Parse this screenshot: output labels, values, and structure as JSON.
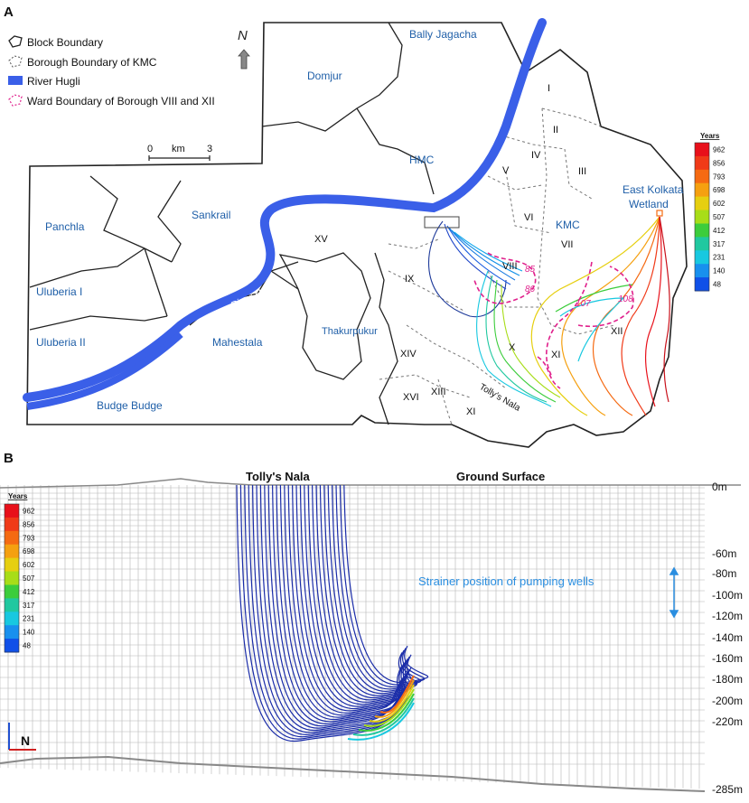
{
  "panelA": {
    "label": "A",
    "legend": {
      "block_boundary": "Block Boundary",
      "borough_boundary": "Borough Boundary of KMC",
      "river": "River Hugli",
      "ward_boundary": "Ward Boundary of Borough VIII and XII"
    },
    "north_label": "N",
    "scale": {
      "zero": "0",
      "unit": "km",
      "max": "3"
    },
    "places": {
      "bally": "Bally Jagacha",
      "domjur": "Domjur",
      "hmc": "HMC",
      "panchla": "Panchla",
      "sankrail": "Sankrail",
      "uluberia1": "Uluberia I",
      "uluberia2": "Uluberia II",
      "mahestala": "Mahestala",
      "budge": "Budge Budge",
      "thakurpukur": "Thakurpukur",
      "kmc": "KMC",
      "ekw_1": "East Kolkata",
      "ekw_2": "Wetland",
      "river_label": "River Hugli",
      "tollys_nala": "Tolly's Nala"
    },
    "boroughs": [
      "I",
      "II",
      "III",
      "IV",
      "V",
      "VI",
      "VII",
      "VIII",
      "IX",
      "X",
      "XI",
      "XII",
      "XIII",
      "XIV",
      "XV",
      "XVI",
      "XI"
    ],
    "wards": [
      "85",
      "86",
      "107",
      "108"
    ]
  },
  "panelB": {
    "label": "B",
    "tollys_nala": "Tolly's Nala",
    "ground_surface": "Ground Surface",
    "strainer": "Strainer position of pumping wells",
    "compass_label": "N",
    "depth_labels": [
      "0m",
      "-60m",
      "-80m",
      "-100m",
      "-120m",
      "-140m",
      "-160m",
      "-180m",
      "-200m",
      "-220m",
      "-285m"
    ]
  },
  "colorbar": {
    "title": "Years",
    "values": [
      "962",
      "856",
      "793",
      "698",
      "602",
      "507",
      "412",
      "317",
      "231",
      "140",
      "48"
    ],
    "colors": [
      "#e8101a",
      "#f03a18",
      "#f56a12",
      "#f5a010",
      "#e6cf10",
      "#a8dd18",
      "#3ccd3c",
      "#20c8a0",
      "#18c8e0",
      "#1890ee",
      "#1050e8"
    ]
  },
  "colors": {
    "place_label": "#1f5fa8",
    "river": "#3a5fe8",
    "ward": "#e0208c",
    "strainer": "#2a8ee0"
  }
}
